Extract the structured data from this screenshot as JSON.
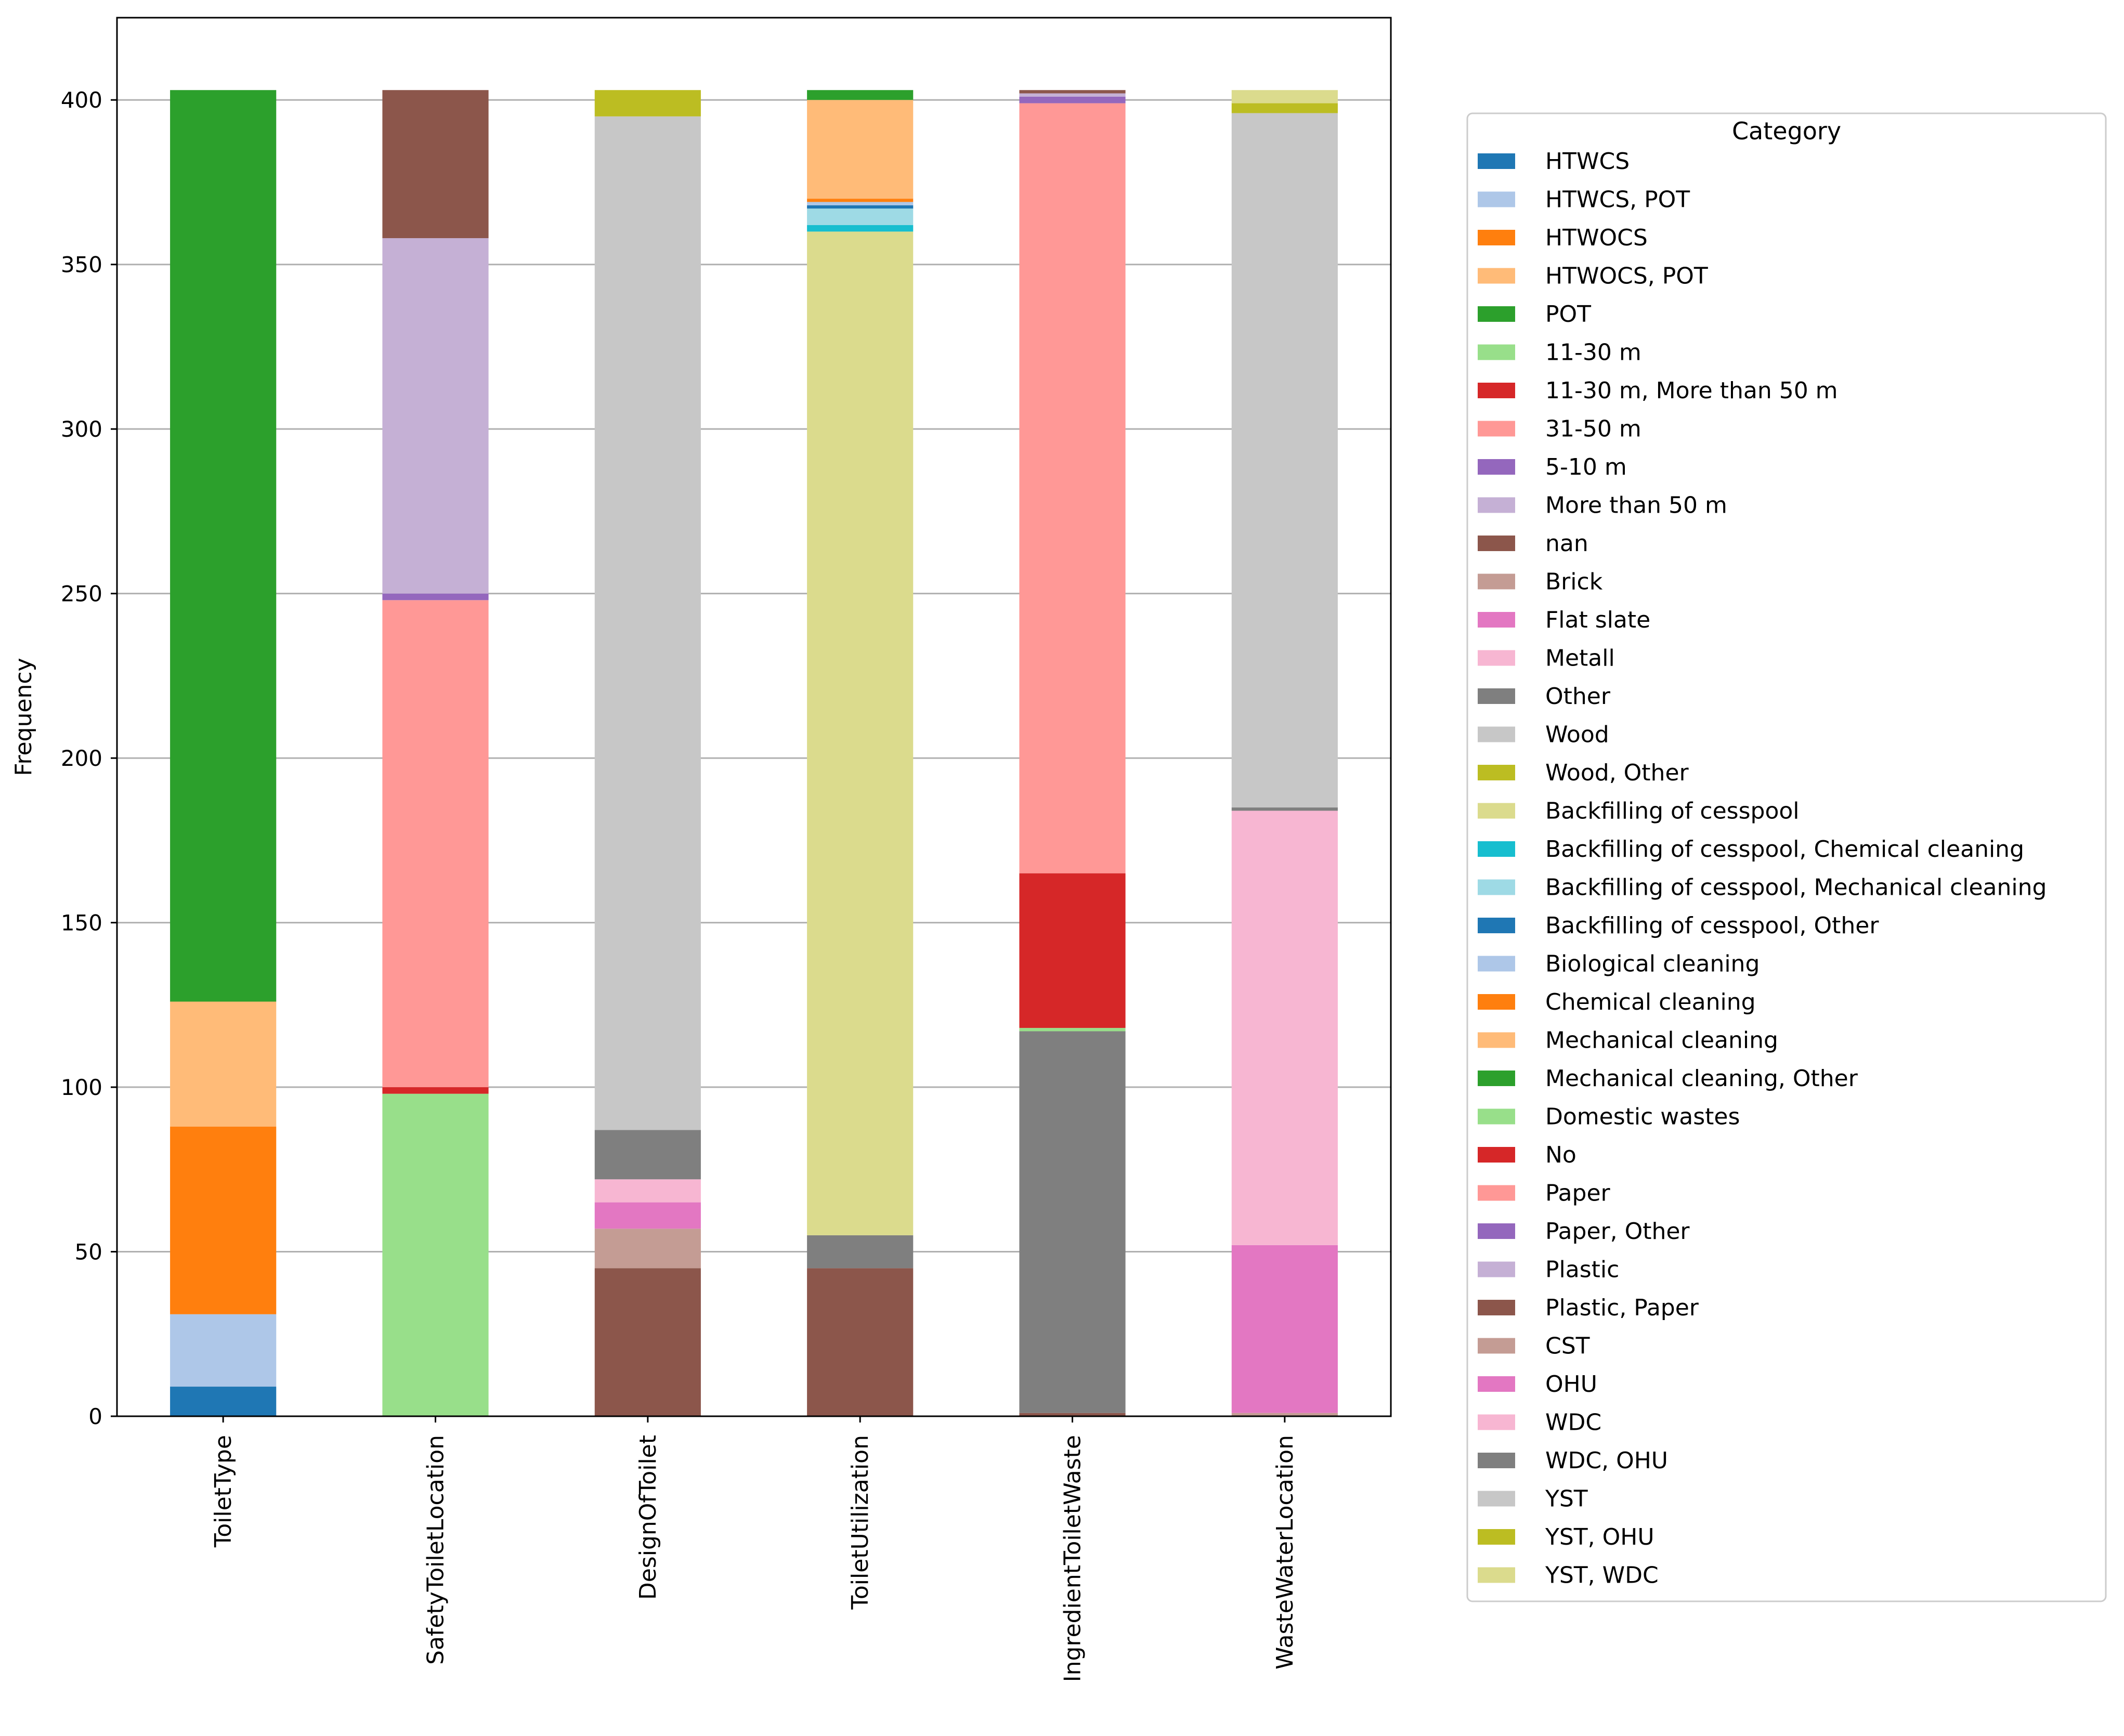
{
  "chart_data": {
    "type": "bar",
    "stacked": true,
    "title": "",
    "xlabel": "",
    "ylabel": "Frequency",
    "ylim": [
      0,
      425
    ],
    "yticks": [
      0,
      50,
      100,
      150,
      200,
      250,
      300,
      350,
      400
    ],
    "grid": "y",
    "legend_title": "Category",
    "legend_position": "right",
    "categories": [
      "ToiletType",
      "SafetyToiletLocation",
      "DesignOfToilet",
      "ToiletUtilization",
      "IngredientToiletWaste",
      "WasteWaterLocation"
    ],
    "series": [
      {
        "name": "HTWCS",
        "color": "#1f77b4",
        "values": [
          9,
          0,
          0,
          0,
          0,
          0
        ]
      },
      {
        "name": "HTWCS, POT",
        "color": "#aec7e8",
        "values": [
          22,
          0,
          0,
          0,
          0,
          0
        ]
      },
      {
        "name": "HTWOCS",
        "color": "#ff7f0e",
        "values": [
          57,
          0,
          0,
          0,
          0,
          0
        ]
      },
      {
        "name": "HTWOCS, POT",
        "color": "#ffbb78",
        "values": [
          38,
          0,
          0,
          0,
          0,
          0
        ]
      },
      {
        "name": "POT",
        "color": "#2ca02c",
        "values": [
          277,
          0,
          0,
          0,
          0,
          0
        ]
      },
      {
        "name": "11-30 m",
        "color": "#98df8a",
        "values": [
          0,
          98,
          0,
          0,
          0,
          0
        ]
      },
      {
        "name": "11-30 m, More than 50 m",
        "color": "#d62728",
        "values": [
          0,
          2,
          0,
          0,
          0,
          0
        ]
      },
      {
        "name": "31-50 m",
        "color": "#ff9896",
        "values": [
          0,
          148,
          0,
          0,
          0,
          0
        ]
      },
      {
        "name": "5-10 m",
        "color": "#9467bd",
        "values": [
          0,
          2,
          0,
          0,
          0,
          0
        ]
      },
      {
        "name": "More than 50 m",
        "color": "#c5b0d5",
        "values": [
          0,
          108,
          0,
          0,
          0,
          0
        ]
      },
      {
        "name": "nan",
        "color": "#8c564b",
        "values": [
          0,
          45,
          45,
          45,
          1,
          0
        ]
      },
      {
        "name": "Brick",
        "color": "#c49c94",
        "values": [
          0,
          0,
          12,
          0,
          0,
          0
        ]
      },
      {
        "name": "Flat slate",
        "color": "#e377c2",
        "values": [
          0,
          0,
          8,
          0,
          0,
          0
        ]
      },
      {
        "name": "Metall",
        "color": "#f7b6d2",
        "values": [
          0,
          0,
          7,
          0,
          0,
          0
        ]
      },
      {
        "name": "Other",
        "color": "#7f7f7f",
        "values": [
          0,
          0,
          15,
          10,
          116,
          0
        ]
      },
      {
        "name": "Wood",
        "color": "#c7c7c7",
        "values": [
          0,
          0,
          308,
          0,
          0,
          0
        ]
      },
      {
        "name": "Wood, Other",
        "color": "#bcbd22",
        "values": [
          0,
          0,
          8,
          0,
          0,
          0
        ]
      },
      {
        "name": "Backfilling of cesspool",
        "color": "#dbdb8d",
        "values": [
          0,
          0,
          0,
          305,
          0,
          0
        ]
      },
      {
        "name": "Backfilling of cesspool, Chemical cleaning",
        "color": "#17becf",
        "values": [
          0,
          0,
          0,
          2,
          0,
          0
        ]
      },
      {
        "name": "Backfilling of cesspool, Mechanical cleaning",
        "color": "#9edae5",
        "values": [
          0,
          0,
          0,
          5,
          0,
          0
        ]
      },
      {
        "name": "Backfilling of cesspool, Other",
        "color": "#1f77b4",
        "values": [
          0,
          0,
          0,
          1,
          0,
          0
        ]
      },
      {
        "name": "Biological cleaning",
        "color": "#aec7e8",
        "values": [
          0,
          0,
          0,
          1,
          0,
          0
        ]
      },
      {
        "name": "Chemical cleaning",
        "color": "#ff7f0e",
        "values": [
          0,
          0,
          0,
          1,
          0,
          0
        ]
      },
      {
        "name": "Mechanical cleaning",
        "color": "#ffbb78",
        "values": [
          0,
          0,
          0,
          30,
          0,
          0
        ]
      },
      {
        "name": "Mechanical cleaning, Other",
        "color": "#2ca02c",
        "values": [
          0,
          0,
          0,
          3,
          0,
          0
        ]
      },
      {
        "name": "Domestic wastes",
        "color": "#98df8a",
        "values": [
          0,
          0,
          0,
          0,
          1,
          0
        ]
      },
      {
        "name": "No",
        "color": "#d62728",
        "values": [
          0,
          0,
          0,
          0,
          47,
          0
        ]
      },
      {
        "name": "Paper",
        "color": "#ff9896",
        "values": [
          0,
          0,
          0,
          0,
          234,
          0
        ]
      },
      {
        "name": "Paper, Other",
        "color": "#9467bd",
        "values": [
          0,
          0,
          0,
          0,
          2,
          0
        ]
      },
      {
        "name": "Plastic",
        "color": "#c5b0d5",
        "values": [
          0,
          0,
          0,
          0,
          1,
          0
        ]
      },
      {
        "name": "Plastic, Paper",
        "color": "#8c564b",
        "values": [
          0,
          0,
          0,
          0,
          1,
          0
        ]
      },
      {
        "name": "CST",
        "color": "#c49c94",
        "values": [
          0,
          0,
          0,
          0,
          0,
          1
        ]
      },
      {
        "name": "OHU",
        "color": "#e377c2",
        "values": [
          0,
          0,
          0,
          0,
          0,
          51
        ]
      },
      {
        "name": "WDC",
        "color": "#f7b6d2",
        "values": [
          0,
          0,
          0,
          0,
          0,
          132
        ]
      },
      {
        "name": "WDC, OHU",
        "color": "#7f7f7f",
        "values": [
          0,
          0,
          0,
          0,
          0,
          1
        ]
      },
      {
        "name": "YST",
        "color": "#c7c7c7",
        "values": [
          0,
          0,
          0,
          0,
          0,
          211
        ]
      },
      {
        "name": "YST, OHU",
        "color": "#bcbd22",
        "values": [
          0,
          0,
          0,
          0,
          0,
          3
        ]
      },
      {
        "name": "YST, WDC",
        "color": "#dbdb8d",
        "values": [
          0,
          0,
          0,
          0,
          0,
          4
        ]
      }
    ]
  }
}
